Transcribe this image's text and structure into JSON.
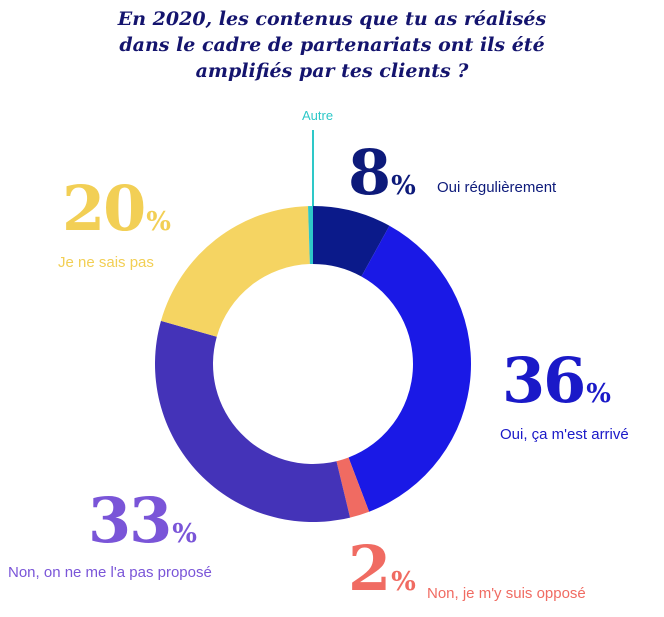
{
  "title": {
    "line1": "En 2020, les contenus que tu as réalisés",
    "line2": "dans le cadre de partenariats ont ils été",
    "line3": "amplifiés par tes clients ?"
  },
  "chart_data": {
    "type": "pie",
    "variant": "donut",
    "title": "En 2020, les contenus que tu as réalisés dans le cadre de partenariats ont ils été amplifiés par tes clients ?",
    "slices": [
      {
        "label": "Oui régulièrement",
        "value": 8,
        "value_text": "8",
        "color": "#0b1a8a"
      },
      {
        "label": "Oui, ça m'est arrivé",
        "value": 36,
        "value_text": "36",
        "color": "#1a19e6"
      },
      {
        "label": "Non, je m'y suis opposé",
        "value": 2,
        "value_text": "2",
        "color": "#f06b62"
      },
      {
        "label": "Non, on ne me l'a pas proposé",
        "value": 33,
        "value_text": "33",
        "color": "#4433b8"
      },
      {
        "label": "Je ne sais pas",
        "value": 20,
        "value_text": "20",
        "color": "#f5d462"
      },
      {
        "label": "Autre",
        "value": 0.5,
        "value_text": "",
        "color": "#2ec8c8"
      }
    ],
    "percent_symbol": "%",
    "label_colors": {
      "oui_regulierement": "#0d1a7a",
      "oui_arrive": "#1a19c8",
      "non_oppose": "#f06b62",
      "non_propose": "#7a55d8",
      "ne_sais_pas": "#f2cf55",
      "autre": "#2ec8c8"
    }
  }
}
